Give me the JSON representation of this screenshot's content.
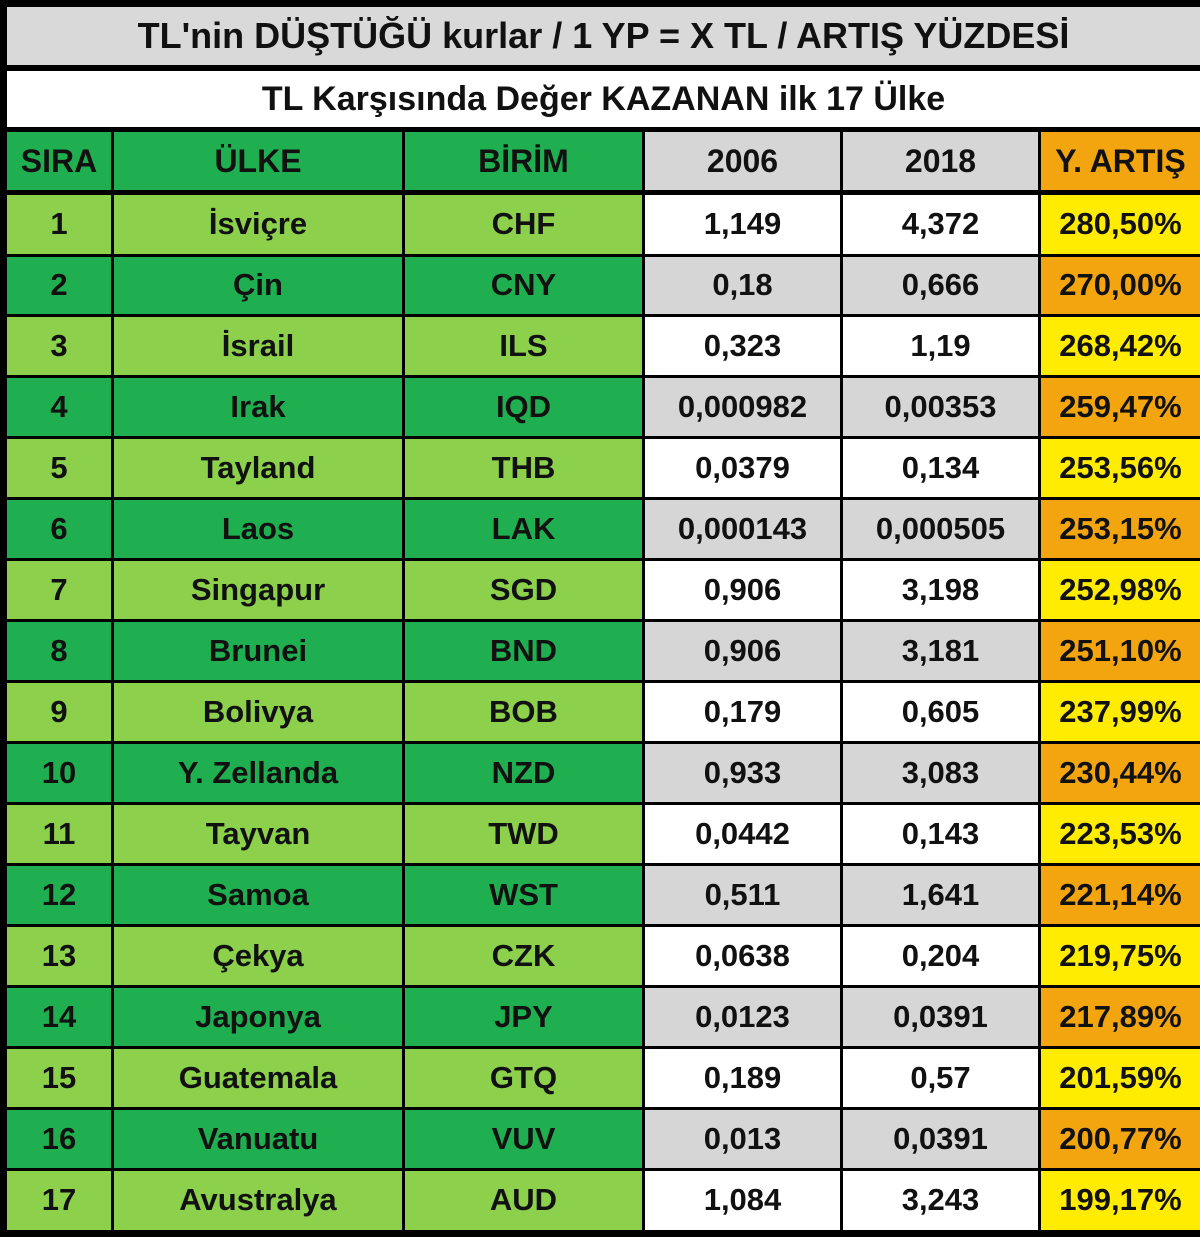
{
  "title": "TL'nin DÜŞTÜĞÜ kurlar / 1 YP = X TL / ARTIŞ YÜZDESİ",
  "subtitle": "TL Karşısında Değer KAZANAN ilk 17 Ülke",
  "colors": {
    "green_dark": "#1faf50",
    "green_light": "#8cd04b",
    "title_gray": "#d9d9d9",
    "cell_gray": "#d6d6d6",
    "yellow": "#ffec00",
    "orange": "#f2a50f",
    "border": "#000000"
  },
  "chart_data": {
    "type": "table",
    "title": "TL'nin DÜŞTÜĞÜ kurlar / 1 YP = X TL / ARTIŞ YÜZDESİ",
    "subtitle": "TL Karşısında Değer KAZANAN ilk 17 Ülke",
    "columns": [
      "SIRA",
      "ÜLKE",
      "BİRİM",
      "2006",
      "2018",
      "Y. ARTIŞ"
    ],
    "rows": [
      {
        "rank": "1",
        "country": "İsviçre",
        "code": "CHF",
        "y2006": "1,149",
        "y2018": "4,372",
        "increase": "280,50%"
      },
      {
        "rank": "2",
        "country": "Çin",
        "code": "CNY",
        "y2006": "0,18",
        "y2018": "0,666",
        "increase": "270,00%"
      },
      {
        "rank": "3",
        "country": "İsrail",
        "code": "ILS",
        "y2006": "0,323",
        "y2018": "1,19",
        "increase": "268,42%"
      },
      {
        "rank": "4",
        "country": "Irak",
        "code": "IQD",
        "y2006": "0,000982",
        "y2018": "0,00353",
        "increase": "259,47%"
      },
      {
        "rank": "5",
        "country": "Tayland",
        "code": "THB",
        "y2006": "0,0379",
        "y2018": "0,134",
        "increase": "253,56%"
      },
      {
        "rank": "6",
        "country": "Laos",
        "code": "LAK",
        "y2006": "0,000143",
        "y2018": "0,000505",
        "increase": "253,15%"
      },
      {
        "rank": "7",
        "country": "Singapur",
        "code": "SGD",
        "y2006": "0,906",
        "y2018": "3,198",
        "increase": "252,98%"
      },
      {
        "rank": "8",
        "country": "Brunei",
        "code": "BND",
        "y2006": "0,906",
        "y2018": "3,181",
        "increase": "251,10%"
      },
      {
        "rank": "9",
        "country": "Bolivya",
        "code": "BOB",
        "y2006": "0,179",
        "y2018": "0,605",
        "increase": "237,99%"
      },
      {
        "rank": "10",
        "country": "Y. Zellanda",
        "code": "NZD",
        "y2006": "0,933",
        "y2018": "3,083",
        "increase": "230,44%"
      },
      {
        "rank": "11",
        "country": "Tayvan",
        "code": "TWD",
        "y2006": "0,0442",
        "y2018": "0,143",
        "increase": "223,53%"
      },
      {
        "rank": "12",
        "country": "Samoa",
        "code": "WST",
        "y2006": "0,511",
        "y2018": "1,641",
        "increase": "221,14%"
      },
      {
        "rank": "13",
        "country": "Çekya",
        "code": "CZK",
        "y2006": "0,0638",
        "y2018": "0,204",
        "increase": "219,75%"
      },
      {
        "rank": "14",
        "country": "Japonya",
        "code": "JPY",
        "y2006": "0,0123",
        "y2018": "0,0391",
        "increase": "217,89%"
      },
      {
        "rank": "15",
        "country": "Guatemala",
        "code": "GTQ",
        "y2006": "0,189",
        "y2018": "0,57",
        "increase": "201,59%"
      },
      {
        "rank": "16",
        "country": "Vanuatu",
        "code": "VUV",
        "y2006": "0,013",
        "y2018": "0,0391",
        "increase": "200,77%"
      },
      {
        "rank": "17",
        "country": "Avustralya",
        "code": "AUD",
        "y2006": "1,084",
        "y2018": "3,243",
        "increase": "199,17%"
      }
    ]
  }
}
